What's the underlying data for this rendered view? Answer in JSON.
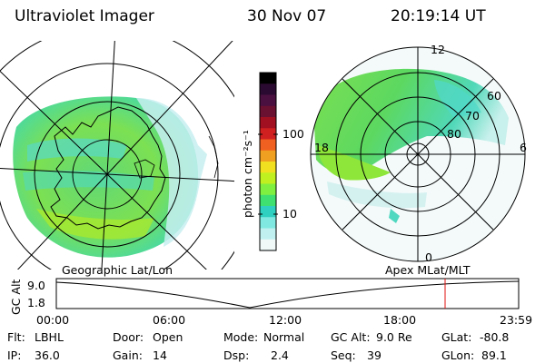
{
  "header": {
    "title": "Ultraviolet Imager",
    "date": "30 Nov 07",
    "time": "20:19:14 UT"
  },
  "left_map": {
    "projection_label": "Geographic Lat/Lon"
  },
  "right_map": {
    "projection_label": "Apex MLat/MLT",
    "mlt_labels": {
      "top": "12",
      "bottom": "0",
      "left": "18",
      "right": "6"
    },
    "lat_labels": [
      "60",
      "70",
      "80"
    ]
  },
  "colorbar": {
    "unit_label": "photon cm⁻²s⁻¹",
    "ticks": [
      "100",
      "10"
    ],
    "colors": [
      "#000000",
      "#2a0a30",
      "#4a1040",
      "#6a1030",
      "#a01020",
      "#d02020",
      "#f06020",
      "#f0a020",
      "#f0e020",
      "#c0f020",
      "#80f040",
      "#40e070",
      "#30d0c0",
      "#80e8e0",
      "#c0f0f0",
      "#f0f8f8"
    ]
  },
  "timeline": {
    "axis_label": "GC Alt",
    "y_ticks": [
      "9.0",
      "1.8"
    ],
    "x_ticks": [
      "00:00",
      "06:00",
      "12:00",
      "18:00",
      "23:59"
    ],
    "current_marker_time": "20:19"
  },
  "footer": {
    "row1": [
      {
        "label": "Flt:",
        "value": "LBHL"
      },
      {
        "label": "Door:",
        "value": "Open"
      },
      {
        "label": "Mode:",
        "value": "Normal"
      },
      {
        "label": "GC Alt:",
        "value": "9.0 Re"
      },
      {
        "label": "GLat:",
        "value": "-80.8"
      }
    ],
    "row2": [
      {
        "label": "IP:",
        "value": "36.0"
      },
      {
        "label": "Gain:",
        "value": "14"
      },
      {
        "label": "Dsp:",
        "value": "2.4"
      },
      {
        "label": "Seq:",
        "value": "39"
      },
      {
        "label": "GLon:",
        "value": "89.1"
      }
    ]
  }
}
